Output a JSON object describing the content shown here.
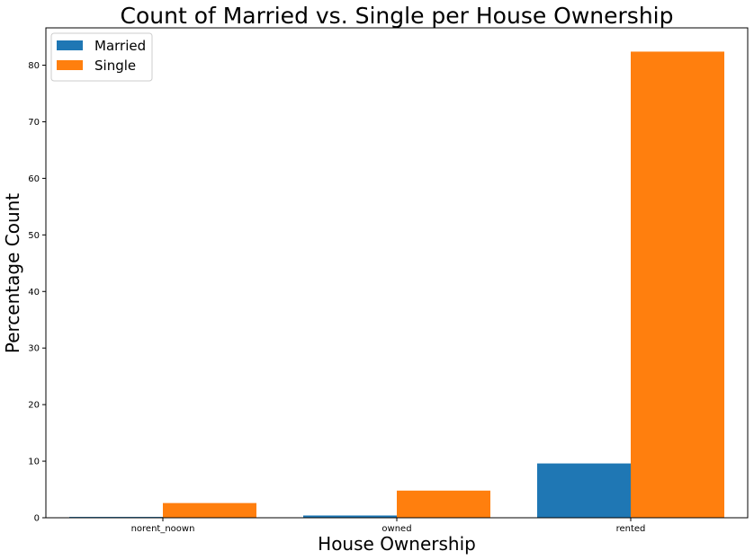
{
  "chart_data": {
    "type": "bar",
    "title": "Count of Married vs. Single per House Ownership",
    "xlabel": "House Ownership",
    "ylabel": "Percentage Count",
    "categories": [
      "norent_noown",
      "owned",
      "rented"
    ],
    "series": [
      {
        "name": "Married",
        "color": "#1f77b4",
        "values": [
          0.15,
          0.4,
          9.6
        ]
      },
      {
        "name": "Single",
        "color": "#ff7f0e",
        "values": [
          2.6,
          4.8,
          82.4
        ]
      }
    ],
    "ylim": [
      0,
      86.6
    ],
    "yticks": [
      0,
      10,
      20,
      30,
      40,
      50,
      60,
      70,
      80
    ],
    "grid": false,
    "legend_position": "top-left"
  }
}
